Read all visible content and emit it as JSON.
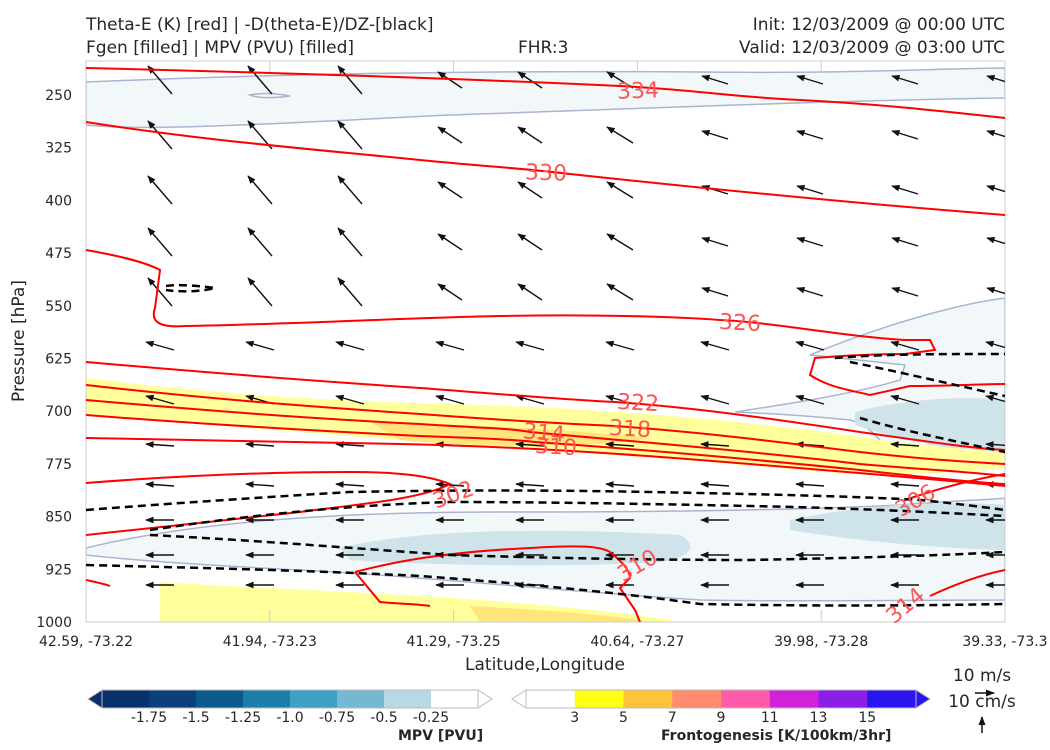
{
  "header": {
    "title_line1": "Theta-E (K) [red] | -D(theta-E)/DZ-[black]",
    "title_line2": "Fgen [filled] | MPV (PVU) [filled]",
    "fhr": "FHR:3",
    "init": "Init: 12/03/2009 @ 00:00 UTC",
    "valid": "Valid: 12/03/2009 @ 03:00 UTC"
  },
  "chart_data": {
    "type": "cross-section",
    "xlabel": "Latitude,Longitude",
    "ylabel": "Pressure [hPa]",
    "x_ticks": [
      "42.59, -73.22",
      "41.94, -73.23",
      "41.29, -73.25",
      "40.64, -73.27",
      "39.98, -73.28",
      "39.33, -73.3"
    ],
    "y_ticks": [
      250,
      325,
      400,
      475,
      550,
      625,
      700,
      775,
      850,
      925,
      1000
    ],
    "ylim": [
      1000,
      200
    ],
    "theta_e_contours": [
      {
        "label": "334",
        "level": 334
      },
      {
        "label": "330",
        "level": 330
      },
      {
        "label": "326",
        "level": 326
      },
      {
        "label": "322",
        "level": 322
      },
      {
        "label": "318",
        "level": 318
      },
      {
        "label": "314",
        "level": 314
      },
      {
        "label": "310",
        "level": 310
      },
      {
        "label": "302",
        "level": 302
      },
      {
        "label": "310",
        "level": 310
      },
      {
        "label": "306",
        "level": 306
      },
      {
        "label": "314",
        "level": 314
      }
    ],
    "mpv_colorbar": {
      "label": "MPV [PVU]",
      "ticks": [
        "-1.75",
        "-1.5",
        "-1.25",
        "-1.0",
        "-0.75",
        "-0.5",
        "-0.25"
      ],
      "colors": [
        "#08306b",
        "#0d3f7a",
        "#0b5a8c",
        "#1c7fa8",
        "#3f9fc4",
        "#74b8d2",
        "#b6d9e3",
        "#ffffff"
      ]
    },
    "fgen_colorbar": {
      "label": "Frontogenesis [K/100km/3hr]",
      "ticks": [
        "3",
        "5",
        "7",
        "9",
        "11",
        "13",
        "15"
      ],
      "colors": [
        "#ffffff",
        "#ffff14",
        "#ffc23a",
        "#ff8c6e",
        "#ff5ba8",
        "#d022d8",
        "#8b1fe6",
        "#2a14ef"
      ]
    },
    "wind_key": {
      "horizontal": "10 m/s",
      "vertical": "10 cm/s"
    },
    "colors": {
      "theta_e": "#ff0000",
      "gradient": "#000000",
      "mpv_fill": "#b6d9e3",
      "fgen_fill": "#ffff80"
    }
  }
}
